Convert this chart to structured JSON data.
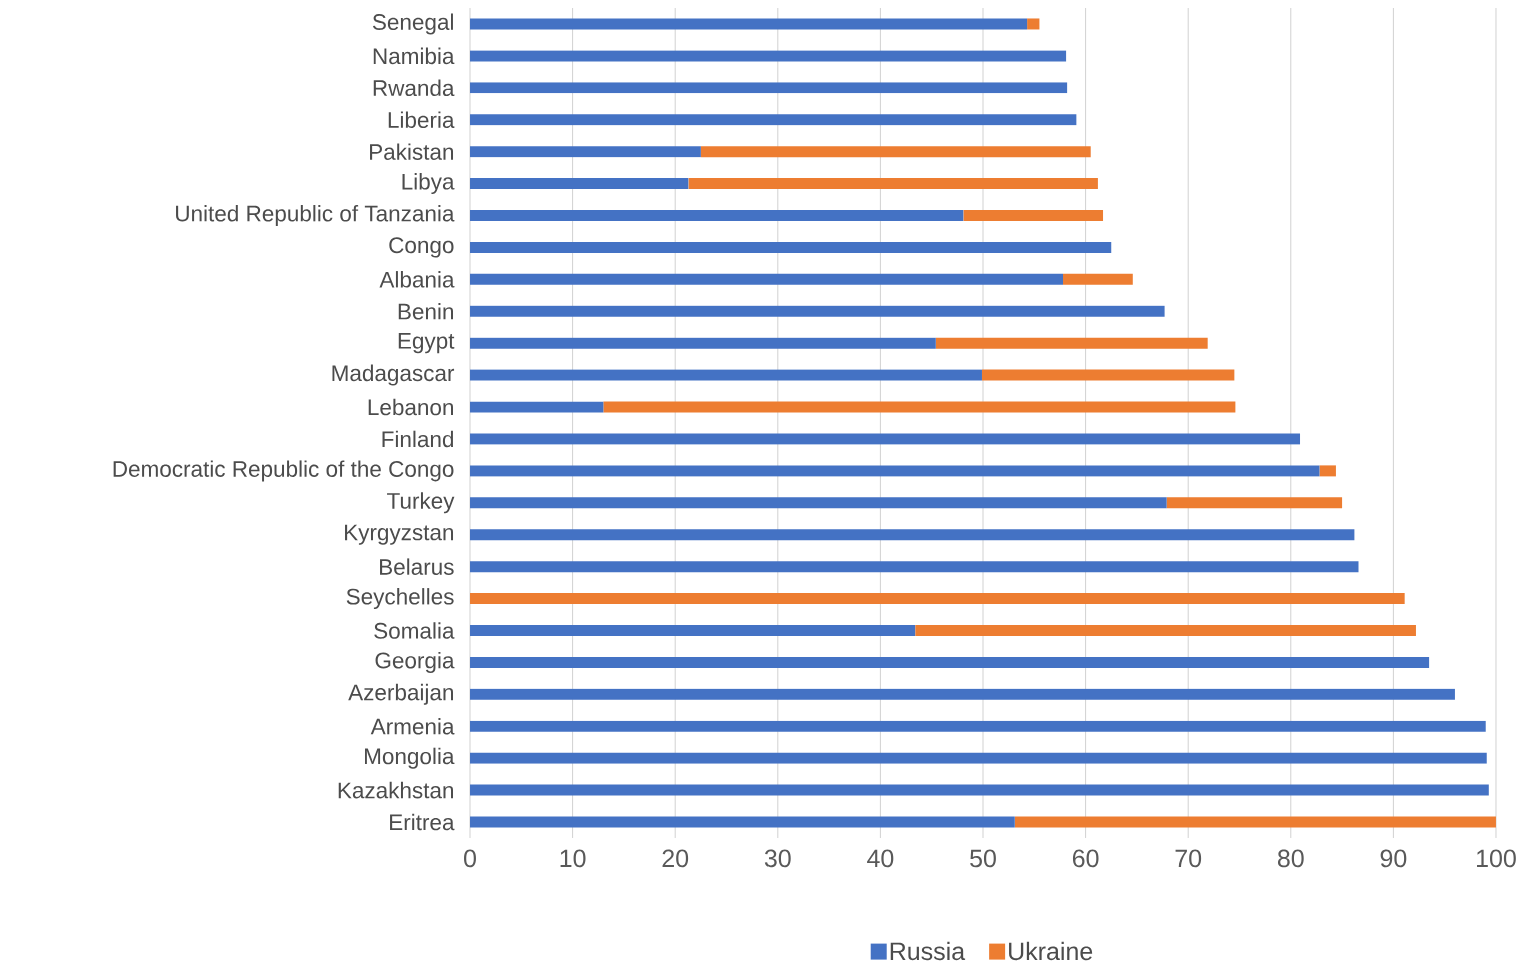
{
  "chart_data": {
    "type": "bar",
    "orientation": "horizontal",
    "stacked": true,
    "categories": [
      "Senegal",
      "Namibia",
      "Rwanda",
      "Liberia",
      "Pakistan",
      "Libya",
      "United Republic of Tanzania",
      "Congo",
      "Albania",
      "Benin",
      "Egypt",
      "Madagascar",
      "Lebanon",
      "Finland",
      "Democratic Republic of the Congo",
      "Turkey",
      "Kyrgyzstan",
      "Belarus",
      "Seychelles",
      "Somalia",
      "Georgia",
      "Azerbaijan",
      "Armenia",
      "Mongolia",
      "Kazakhstan",
      "Eritrea"
    ],
    "series": [
      {
        "name": "Russia",
        "color": "#4472c4",
        "values": [
          54.3,
          58.1,
          58.2,
          59.1,
          22.5,
          21.3,
          48.1,
          62.5,
          57.8,
          67.7,
          45.4,
          49.9,
          13.0,
          80.9,
          82.8,
          67.9,
          86.2,
          86.6,
          null,
          43.4,
          93.5,
          96.0,
          99.0,
          99.1,
          99.3,
          53.1
        ]
      },
      {
        "name": "Ukraine",
        "color": "#ed7d31",
        "values": [
          1.2,
          null,
          null,
          null,
          38.0,
          39.9,
          13.6,
          null,
          6.8,
          null,
          26.5,
          24.6,
          61.6,
          null,
          1.6,
          17.1,
          null,
          null,
          91.1,
          48.8,
          null,
          null,
          null,
          null,
          null,
          46.9
        ]
      }
    ],
    "xlim": [
      0,
      100
    ],
    "xticks": [
      0,
      10,
      20,
      30,
      40,
      50,
      60,
      70,
      80,
      90,
      100
    ],
    "grid": "x",
    "legend": "bottom"
  }
}
